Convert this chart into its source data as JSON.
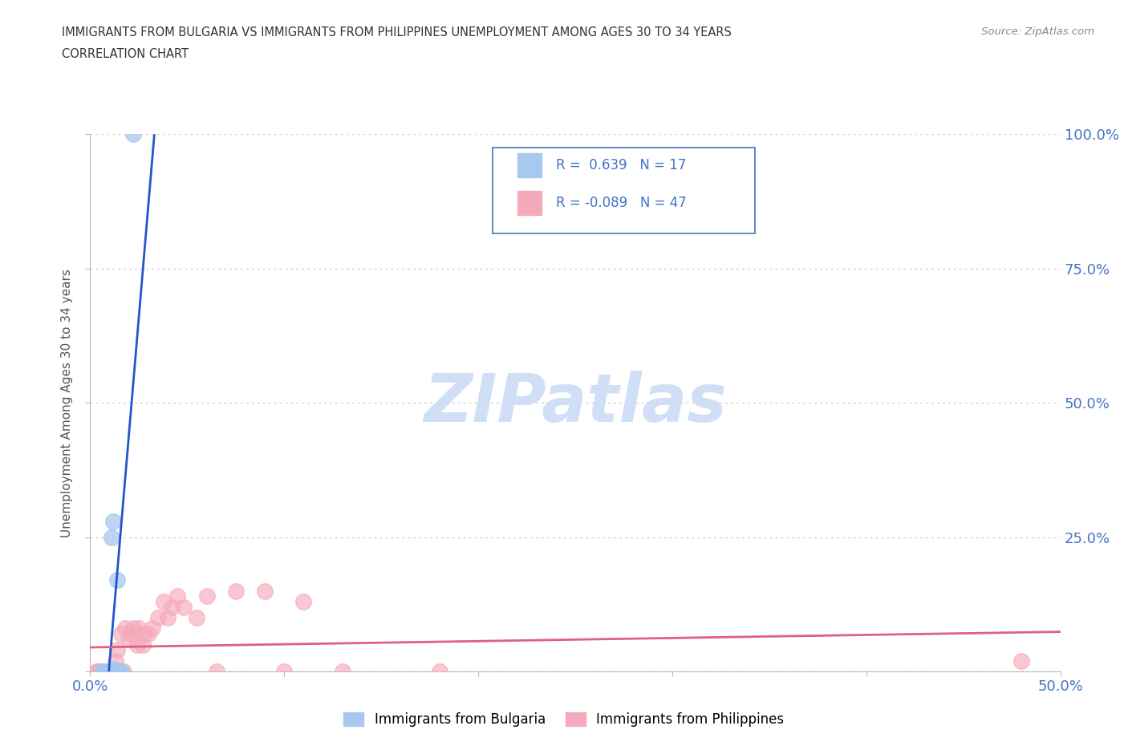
{
  "title_line1": "IMMIGRANTS FROM BULGARIA VS IMMIGRANTS FROM PHILIPPINES UNEMPLOYMENT AMONG AGES 30 TO 34 YEARS",
  "title_line2": "CORRELATION CHART",
  "source_text": "Source: ZipAtlas.com",
  "ylabel": "Unemployment Among Ages 30 to 34 years",
  "xlim": [
    0.0,
    0.5
  ],
  "ylim": [
    0.0,
    1.0
  ],
  "xticks": [
    0.0,
    0.1,
    0.2,
    0.3,
    0.4,
    0.5
  ],
  "yticks": [
    0.0,
    0.25,
    0.5,
    0.75,
    1.0
  ],
  "xticklabels": [
    "0.0%",
    "",
    "",
    "",
    "",
    "50.0%"
  ],
  "right_yticklabels": [
    "",
    "25.0%",
    "50.0%",
    "75.0%",
    "100.0%"
  ],
  "bulgaria_color": "#a8c8f0",
  "philippines_color": "#f5aabb",
  "bulgaria_line_color": "#2255cc",
  "philippines_line_color": "#e06080",
  "R_bulgaria": 0.639,
  "N_bulgaria": 17,
  "R_philippines": -0.089,
  "N_philippines": 47,
  "watermark_color": "#d0dff5",
  "background_color": "#ffffff",
  "grid_color": "#d0d0d0",
  "title_color": "#333333",
  "axis_label_color": "#555555",
  "tick_color": "#4472c4",
  "legend_box_color": "#4472c4",
  "bulgaria_x": [
    0.006,
    0.007,
    0.008,
    0.009,
    0.01,
    0.01,
    0.01,
    0.011,
    0.012,
    0.012,
    0.013,
    0.013,
    0.014,
    0.015,
    0.015,
    0.016,
    0.022
  ],
  "bulgaria_y": [
    0.0,
    0.0,
    0.0,
    0.0,
    0.0,
    0.0,
    0.0,
    0.25,
    0.28,
    0.005,
    0.0,
    0.0,
    0.17,
    0.0,
    0.0,
    0.0,
    1.0
  ],
  "philippines_x": [
    0.003,
    0.004,
    0.005,
    0.005,
    0.006,
    0.006,
    0.007,
    0.007,
    0.008,
    0.008,
    0.009,
    0.009,
    0.01,
    0.01,
    0.011,
    0.012,
    0.013,
    0.014,
    0.015,
    0.016,
    0.017,
    0.018,
    0.02,
    0.021,
    0.022,
    0.024,
    0.025,
    0.027,
    0.028,
    0.03,
    0.032,
    0.035,
    0.038,
    0.04,
    0.042,
    0.045,
    0.048,
    0.055,
    0.06,
    0.065,
    0.075,
    0.09,
    0.1,
    0.11,
    0.13,
    0.18,
    0.48
  ],
  "philippines_y": [
    0.0,
    0.0,
    0.0,
    0.0,
    0.0,
    0.0,
    0.0,
    0.0,
    0.0,
    0.0,
    0.0,
    0.0,
    0.0,
    0.0,
    0.0,
    0.0,
    0.02,
    0.04,
    0.0,
    0.07,
    0.0,
    0.08,
    0.06,
    0.07,
    0.08,
    0.05,
    0.08,
    0.05,
    0.07,
    0.07,
    0.08,
    0.1,
    0.13,
    0.1,
    0.12,
    0.14,
    0.12,
    0.1,
    0.14,
    0.0,
    0.15,
    0.15,
    0.0,
    0.13,
    0.0,
    0.0,
    0.02
  ]
}
